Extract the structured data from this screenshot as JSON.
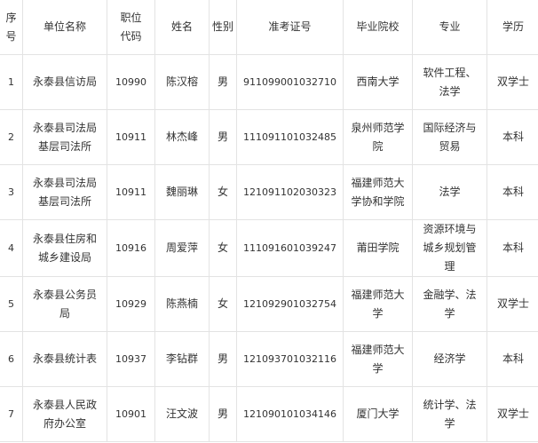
{
  "table": {
    "headers": [
      "序号",
      "单位名称",
      "职位代码",
      "姓名",
      "性别",
      "准考证号",
      "毕业院校",
      "专业",
      "学历"
    ],
    "rows": [
      [
        "1",
        "永泰县信访局",
        "10990",
        "陈汉榕",
        "男",
        "911099001032710",
        "西南大学",
        "软件工程、法学",
        "双学士"
      ],
      [
        "2",
        "永泰县司法局基层司法所",
        "10911",
        "林杰峰",
        "男",
        "111091101032485",
        "泉州师范学院",
        "国际经济与贸易",
        "本科"
      ],
      [
        "3",
        "永泰县司法局基层司法所",
        "10911",
        "魏丽琳",
        "女",
        "121091102030323",
        "福建师范大学协和学院",
        "法学",
        "本科"
      ],
      [
        "4",
        "永泰县住房和城乡建设局",
        "10916",
        "周爱萍",
        "女",
        "111091601039247",
        "莆田学院",
        "资源环境与城乡规划管理",
        "本科"
      ],
      [
        "5",
        "永泰县公务员局",
        "10929",
        "陈燕楠",
        "女",
        "121092901032754",
        "福建师范大学",
        "金融学、法学",
        "双学士"
      ],
      [
        "6",
        "永泰县统计表",
        "10937",
        "李钻群",
        "男",
        "121093701032116",
        "福建师范大学",
        "经济学",
        "本科"
      ],
      [
        "7",
        "永泰县人民政府办公室",
        "10901",
        "汪文波",
        "男",
        "121090101034146",
        "厦门大学",
        "统计学、法学",
        "双学士"
      ]
    ]
  }
}
